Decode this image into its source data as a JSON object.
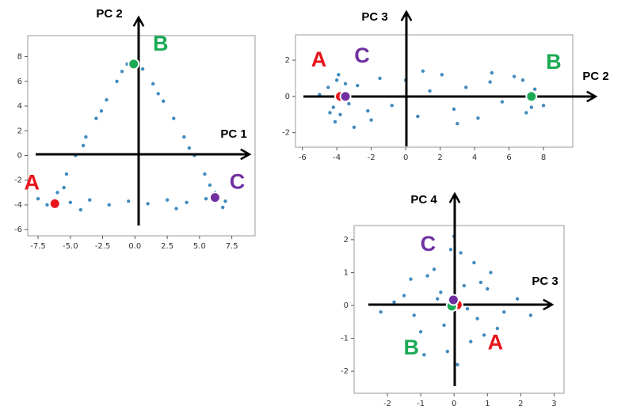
{
  "chart_data": [
    {
      "type": "scatter",
      "x_label": "PC 1",
      "y_label": "PC 2",
      "xlim": [
        -8.3,
        9.3
      ],
      "ylim": [
        -6.5,
        9.7
      ],
      "xticks": [
        -7.5,
        {
          "value": -5,
          "label": "-5.0"
        },
        -2.5,
        {
          "value": 0,
          "label": "0.0"
        },
        2.5,
        {
          "value": 5,
          "label": "5.0"
        },
        7.5
      ],
      "yticks": [
        -6,
        -4,
        -2,
        0,
        2,
        4,
        6,
        8
      ],
      "series": [
        {
          "color": "#1f77b4",
          "x": [
            -6,
            -5.3,
            -4.6,
            -3.8,
            -3,
            -2.2,
            -1.4,
            -0.6,
            -5.5,
            -4,
            -2.6,
            -1,
            0.6,
            1.4,
            2.2,
            3,
            3.8,
            4.6,
            5.4,
            6.2,
            1.8,
            4.2,
            5.8,
            -6.8,
            -5,
            -3.5,
            -2,
            -0.5,
            1,
            2.5,
            4,
            5.5,
            7,
            -7.5,
            6.8,
            -4.2,
            3.2
          ],
          "y": [
            -3,
            -1.5,
            0,
            1.5,
            3,
            4.5,
            6,
            7.4,
            -2.6,
            0.8,
            3.6,
            6.8,
            7,
            5.8,
            4.4,
            3,
            1.5,
            0,
            -1.5,
            -3,
            5,
            0.6,
            -2.4,
            -4,
            -3.8,
            -3.6,
            -4,
            -3.7,
            -3.9,
            -3.6,
            -3.8,
            -3.5,
            -3.7,
            -3.5,
            -4.2,
            -4.4,
            -4.3
          ]
        },
        {
          "name": "A",
          "color": "#e8141c",
          "x": [
            -6.2
          ],
          "y": [
            -3.9
          ]
        },
        {
          "name": "B",
          "color": "#1aaa55",
          "x": [
            -0.1
          ],
          "y": [
            7.4
          ]
        },
        {
          "name": "C",
          "color": "#7030a0",
          "x": [
            6.2
          ],
          "y": [
            -3.4
          ]
        }
      ]
    },
    {
      "type": "scatter",
      "x_label": "PC 2",
      "y_label": "PC 3",
      "xlim": [
        -6.4,
        9.7
      ],
      "ylim": [
        -2.8,
        3.4
      ],
      "xticks": [
        -6,
        -4,
        -2,
        0,
        2,
        4,
        6,
        8
      ],
      "yticks": [
        -2,
        0,
        2
      ],
      "series": [
        {
          "color": "#1f77b4",
          "x": [
            -4.5,
            -4.2,
            -4,
            -3.8,
            -3.6,
            -3.3,
            -4.4,
            -3.9,
            -3.5,
            -4.1,
            -2.8,
            -2.2,
            -1.5,
            -0.8,
            0,
            0.7,
            1.4,
            2.1,
            2.8,
            3.5,
            4.2,
            4.9,
            5.6,
            6.3,
            7,
            7.5,
            8,
            6.8,
            7.3,
            -2,
            1,
            3,
            5,
            -5,
            -3
          ],
          "y": [
            0.5,
            -0.6,
            0.9,
            -1,
            0.2,
            -0.4,
            -0.9,
            1.2,
            0.7,
            -1.4,
            0.6,
            -0.8,
            1,
            -0.5,
            0.9,
            -1.1,
            0.3,
            1.2,
            -0.7,
            0.5,
            -1.2,
            0.8,
            -0.3,
            1.1,
            -0.9,
            0.4,
            -0.5,
            0.9,
            -0.6,
            -1.3,
            1.4,
            -1.5,
            1.3,
            0.1,
            -1.7
          ]
        },
        {
          "name": "A",
          "color": "#e8141c",
          "x": [
            -3.8
          ],
          "y": [
            0
          ]
        },
        {
          "name": "B",
          "color": "#1aaa55",
          "x": [
            7.3
          ],
          "y": [
            0
          ]
        },
        {
          "name": "C",
          "color": "#7030a0",
          "x": [
            -3.5
          ],
          "y": [
            0
          ]
        }
      ]
    },
    {
      "type": "scatter",
      "x_label": "PC 3",
      "y_label": "PC 4",
      "xlim": [
        -3.0,
        3.3
      ],
      "ylim": [
        -2.67,
        2.43
      ],
      "xticks": [
        -2,
        -1,
        0,
        1,
        2,
        3
      ],
      "yticks": [
        -2,
        -1,
        0,
        1,
        2
      ],
      "series": [
        {
          "color": "#1f77b4",
          "x": [
            -1.5,
            -1,
            -0.6,
            -0.2,
            0.3,
            0.7,
            1.1,
            1.5,
            -1.2,
            -0.4,
            0.5,
            1,
            -0.8,
            0.2,
            0.9,
            -0.3,
            0.1,
            -1.8,
            1.9,
            0.6,
            -0.9,
            0.4,
            -0.5,
            1.3,
            -1.3,
            0,
            2.3,
            -2.2,
            0.8,
            -0.1
          ],
          "y": [
            0.3,
            -0.8,
            1.1,
            -1.4,
            0.6,
            -0.4,
            1,
            -0.2,
            -0.3,
            0.4,
            -1.1,
            0.5,
            0.9,
            1.6,
            -0.9,
            -0.6,
            -1.8,
            0.1,
            0.2,
            1.3,
            -1.5,
            -0.1,
            0.2,
            -0.7,
            0.8,
            2.1,
            -0.3,
            -0.2,
            0.7,
            1.7
          ]
        },
        {
          "name": "A",
          "color": "#e8141c",
          "x": [
            0.1
          ],
          "y": [
            0.02
          ]
        },
        {
          "name": "B",
          "color": "#1aaa55",
          "x": [
            -0.07
          ],
          "y": [
            -0.02
          ]
        },
        {
          "name": "C",
          "color": "#7030a0",
          "x": [
            -0.02
          ],
          "y": [
            0.17
          ]
        }
      ]
    }
  ]
}
